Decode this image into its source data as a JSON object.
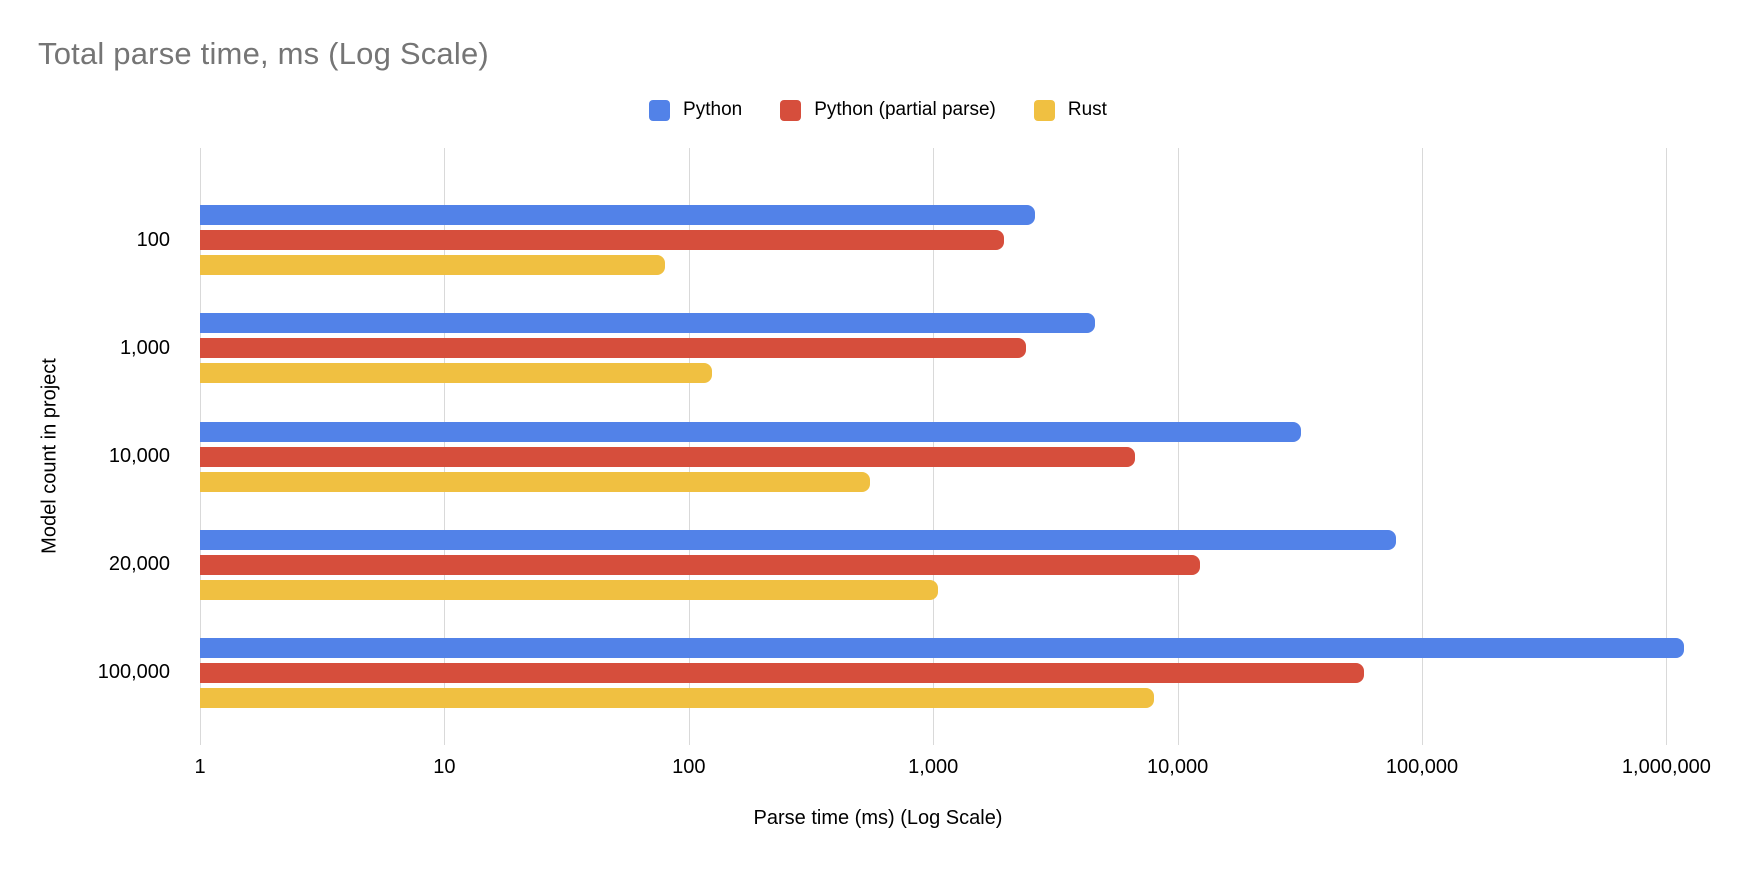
{
  "chart": {
    "title": "Total parse time, ms (Log Scale)",
    "x_axis_title": "Parse time (ms) (Log Scale)",
    "y_axis_title": "Model count in project"
  },
  "chart_data": {
    "type": "bar",
    "orientation": "horizontal",
    "x_scale": "log",
    "title": "Total parse time, ms (Log Scale)",
    "xlabel": "Parse time (ms) (Log Scale)",
    "ylabel": "Model count in project",
    "legend_position": "top",
    "grid": true,
    "categories": [
      "100",
      "1,000",
      "10,000",
      "20,000",
      "100,000"
    ],
    "series": [
      {
        "name": "Python",
        "color": "#5282E8",
        "values": [
          2600,
          4600,
          32000,
          78000,
          1180000
        ]
      },
      {
        "name": "Python (partial parse)",
        "color": "#D64E3C",
        "values": [
          1950,
          2400,
          6700,
          12300,
          58000
        ]
      },
      {
        "name": "Rust",
        "color": "#F0C041",
        "values": [
          80,
          125,
          550,
          1050,
          8000
        ]
      }
    ],
    "x_ticks": [
      "1",
      "10",
      "100",
      "1,000",
      "10,000",
      "100,000",
      "1,000,000"
    ],
    "x_tick_values": [
      1,
      10,
      100,
      1000,
      10000,
      100000,
      1000000
    ],
    "xlim": [
      1,
      2000000
    ]
  },
  "colors": {
    "title_text": "#757575",
    "axis_text": "#000000",
    "gridline": "#d9d9d9",
    "background": "#ffffff",
    "series_blue": "#5282E8",
    "series_red": "#D64E3C",
    "series_yellow": "#F0C041"
  }
}
